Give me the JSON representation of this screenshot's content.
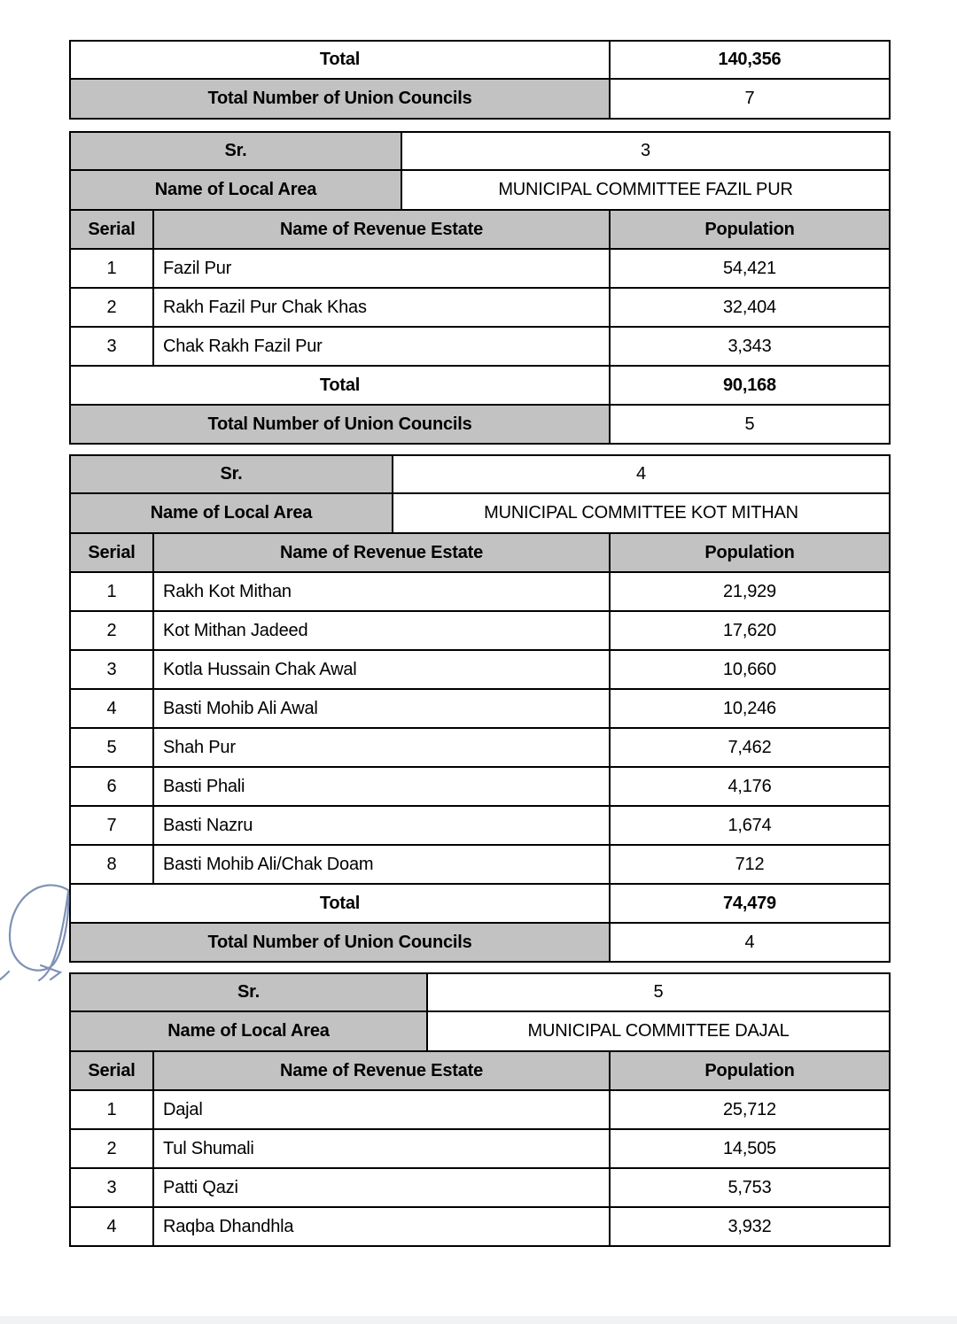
{
  "colors": {
    "header_fill": "#c2c2c2",
    "border": "#000000",
    "scribble_ink": "#6e82ab",
    "page_edge_bar": "#f1f2f4"
  },
  "summary": {
    "total_label": "Total",
    "total_value": "140,356",
    "uc_label": "Total Number of Union Councils",
    "uc_value": "7"
  },
  "sections": [
    {
      "sr_label": "Sr.",
      "sr_value": "3",
      "area_label": "Name of Local Area",
      "area_value": "MUNICIPAL COMMITTEE FAZIL PUR",
      "col_headers": [
        "Serial",
        "Name of Revenue Estate",
        "Population"
      ],
      "rows": [
        [
          "1",
          "Fazil Pur",
          "54,421"
        ],
        [
          "2",
          "Rakh Fazil Pur Chak Khas",
          "32,404"
        ],
        [
          "3",
          "Chak Rakh Fazil Pur",
          "3,343"
        ]
      ],
      "total_label": "Total",
      "total_value": "90,168",
      "uc_label": "Total Number of Union Councils",
      "uc_value": "5"
    },
    {
      "sr_label": "Sr.",
      "sr_value": "4",
      "area_label": "Name of Local Area",
      "area_value": "MUNICIPAL COMMITTEE KOT MITHAN",
      "col_headers": [
        "Serial",
        "Name of Revenue Estate",
        "Population"
      ],
      "rows": [
        [
          "1",
          "Rakh Kot Mithan",
          "21,929"
        ],
        [
          "2",
          "Kot Mithan Jadeed",
          "17,620"
        ],
        [
          "3",
          "Kotla Hussain Chak Awal",
          "10,660"
        ],
        [
          "4",
          "Basti Mohib Ali Awal",
          "10,246"
        ],
        [
          "5",
          "Shah Pur",
          "7,462"
        ],
        [
          "6",
          "Basti Phali",
          "4,176"
        ],
        [
          "7",
          "Basti Nazru",
          "1,674"
        ],
        [
          "8",
          "Basti Mohib Ali/Chak Doam",
          "712"
        ]
      ],
      "total_label": "Total",
      "total_value": "74,479",
      "uc_label": "Total Number of Union Councils",
      "uc_value": "4"
    },
    {
      "sr_label": "Sr.",
      "sr_value": "5",
      "area_label": "Name of Local Area",
      "area_value": "MUNICIPAL COMMITTEE DAJAL",
      "col_headers": [
        "Serial",
        "Name of Revenue Estate",
        "Population"
      ],
      "rows": [
        [
          "1",
          "Dajal",
          "25,712"
        ],
        [
          "2",
          "Tul Shumali",
          "14,505"
        ],
        [
          "3",
          "Patti Qazi",
          "5,753"
        ],
        [
          "4",
          "Raqba Dhandhla",
          "3,932"
        ]
      ]
    }
  ]
}
